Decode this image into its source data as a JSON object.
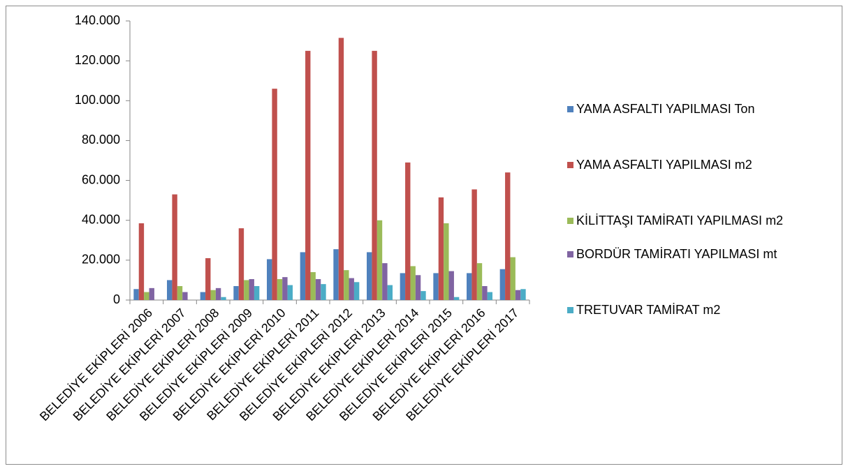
{
  "chart_data": {
    "type": "bar",
    "categories": [
      "BELEDİYE EKİPLERİ 2006",
      "BELEDİYE EKİPLERİ 2007",
      "BELEDİYE EKİPLERİ 2008",
      "BELEDİYE EKİPLERİ 2009",
      "BELEDİYE EKİPLERİ 2010",
      "BELEDİYE EKİPLERİ 2011",
      "BELEDİYE EKİPLERİ 2012",
      "BELEDİYE EKİPLERİ 2013",
      "BELEDİYE EKİPLERİ 2014",
      "BELEDİYE EKİPLERİ 2015",
      "BELEDİYE EKİPLERİ 2016",
      "BELEDİYE EKİPLERİ 2017"
    ],
    "series": [
      {
        "name": "YAMA ASFALTI YAPILMASI Ton",
        "color": "#4f81bd",
        "values": [
          5500,
          10000,
          4000,
          7000,
          20500,
          24000,
          25500,
          24000,
          13500,
          13500,
          13500,
          15500
        ]
      },
      {
        "name": "YAMA ASFALTI YAPILMASI m2",
        "color": "#c0504d",
        "values": [
          38500,
          53000,
          21000,
          36000,
          106000,
          125000,
          131500,
          125000,
          69000,
          51500,
          55500,
          64000
        ]
      },
      {
        "name": "KİLİTTAŞI TAMİRATI YAPILMASI m2",
        "color": "#9bbb59",
        "values": [
          4000,
          7000,
          5000,
          10000,
          10500,
          14000,
          15000,
          40000,
          17000,
          38500,
          18500,
          21500
        ]
      },
      {
        "name": "BORDÜR TAMİRATI YAPILMASI mt",
        "color": "#8064a2",
        "values": [
          6000,
          4000,
          6000,
          10500,
          11500,
          10500,
          11000,
          18500,
          12500,
          14500,
          7000,
          5000
        ]
      },
      {
        "name": "TRETUVAR TAMİRAT m2",
        "color": "#4bacc6",
        "values": [
          0,
          0,
          1500,
          7000,
          7500,
          8000,
          9000,
          7500,
          4500,
          1500,
          4000,
          5500
        ]
      }
    ],
    "ylim": [
      0,
      140000
    ],
    "yticks": [
      0,
      {
        "value": 20000,
        "label": "20.000"
      },
      {
        "value": 40000,
        "label": "40.000"
      },
      {
        "value": 60000,
        "label": "60.000"
      },
      {
        "value": 80000,
        "label": "80.000"
      },
      {
        "value": 100000,
        "label": "100.000"
      },
      {
        "value": 120000,
        "label": "120.000"
      },
      {
        "value": 140000,
        "label": "140.000"
      }
    ],
    "grid": false,
    "legend": "right"
  }
}
